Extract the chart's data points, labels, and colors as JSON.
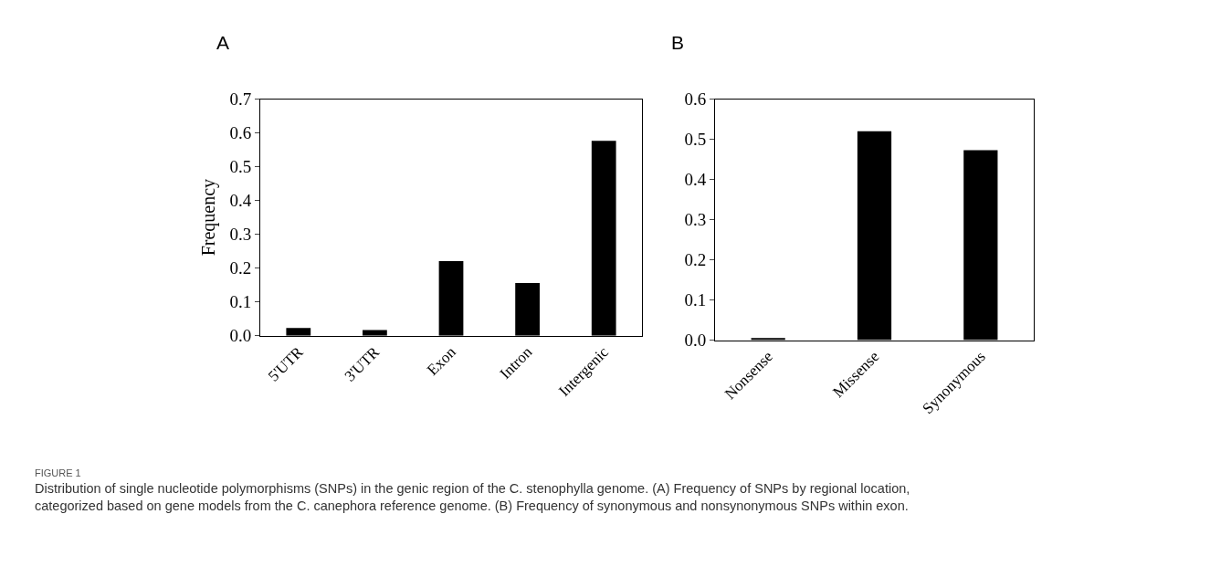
{
  "chart_data": [
    {
      "type": "bar",
      "title": "A",
      "ylabel": "Frequency",
      "categories": [
        "5'UTR",
        "3'UTR",
        "Exon",
        "Intron",
        "Intergenic"
      ],
      "values": [
        0.023,
        0.017,
        0.221,
        0.156,
        0.577
      ],
      "color": "#000000",
      "ylim": [
        0,
        0.7
      ],
      "yticks": [
        {
          "value": 0,
          "label": "0.0"
        },
        0.1,
        0.2,
        0.3,
        0.4,
        0.5,
        0.6,
        0.7
      ],
      "annotations": [
        "FIGURE 1",
        "Distribution of single nucleotide polymorphisms (SNPs) in the genic region of the C. stenophylla genome. (A) Frequency of SNPs by regional location, categorized based on gene models from the C. canephora reference genome. (B) Frequency of synonymous and nonsynonymous SNPs within exon."
      ]
    },
    {
      "type": "bar",
      "title": "B",
      "categories": [
        "Nonsense",
        "Missense",
        "Synonymous"
      ],
      "values": [
        0.005,
        0.52,
        0.473
      ],
      "color": "#000000",
      "ylim": [
        0,
        0.6
      ],
      "yticks": [
        {
          "value": 0,
          "label": "0.0"
        },
        0.1,
        0.2,
        0.3,
        0.4,
        0.5,
        0.6
      ]
    }
  ]
}
